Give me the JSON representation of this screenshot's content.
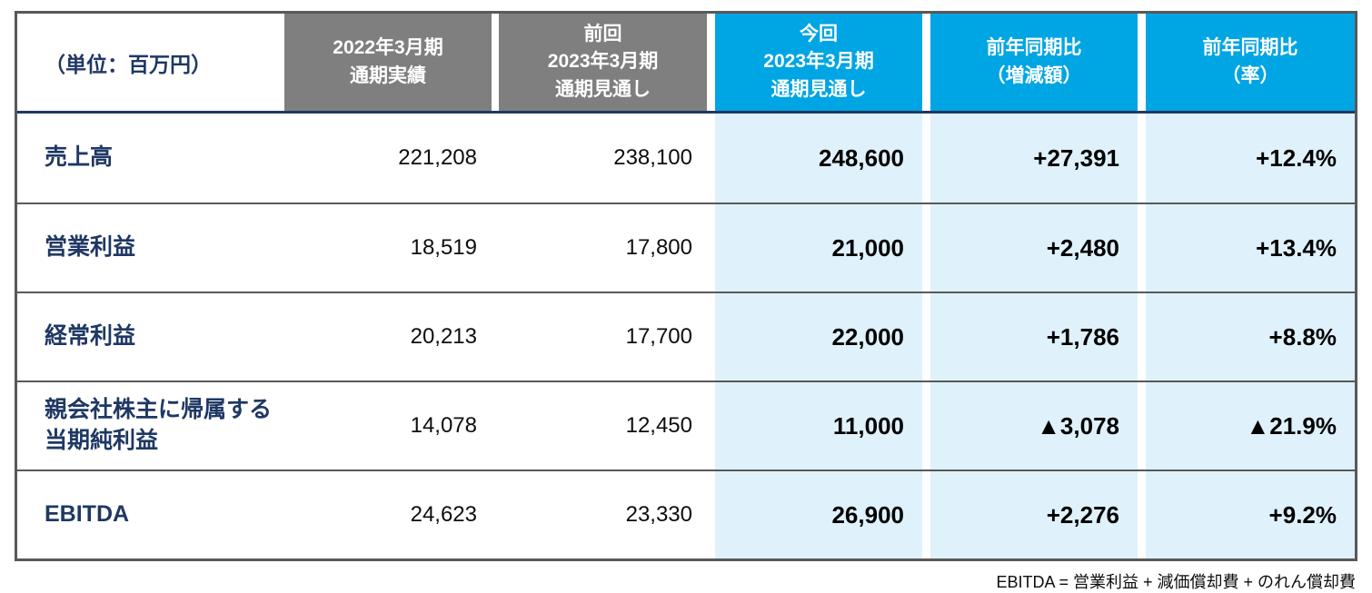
{
  "colors": {
    "header_gray": "#7f7f7f",
    "header_cyan": "#00a5e3",
    "body_light_blue": "#dff1fb",
    "navy_text": "#1f3864",
    "border_gray": "#595959"
  },
  "table": {
    "unit_label": "（単位：百万円）",
    "column_headers": [
      {
        "label": "2022年3月期\n通期実績",
        "style": "gray"
      },
      {
        "label": "前回\n2023年3月期\n通期見通し",
        "style": "gray"
      },
      {
        "label": "今回\n2023年3月期\n通期見通し",
        "style": "cyan"
      },
      {
        "label": "前年同期比\n（増減額）",
        "style": "cyan"
      },
      {
        "label": "前年同期比\n（率）",
        "style": "cyan"
      }
    ],
    "rows": [
      {
        "label": "売上高",
        "values": [
          "221,208",
          "238,100",
          "248,600",
          "+27,391",
          "+12.4%"
        ]
      },
      {
        "label": "営業利益",
        "values": [
          "18,519",
          "17,800",
          "21,000",
          "+2,480",
          "+13.4%"
        ]
      },
      {
        "label": "経常利益",
        "values": [
          "20,213",
          "17,700",
          "22,000",
          "+1,786",
          "+8.8%"
        ]
      },
      {
        "label": "親会社株主に帰属する\n当期純利益",
        "values": [
          "14,078",
          "12,450",
          "11,000",
          "▲3,078",
          "▲21.9%"
        ]
      },
      {
        "label": "EBITDA",
        "values": [
          "24,623",
          "23,330",
          "26,900",
          "+2,276",
          "+9.2%"
        ]
      }
    ]
  },
  "footnote": "EBITDA = 営業利益 + 減価償却費 + のれん償却費"
}
